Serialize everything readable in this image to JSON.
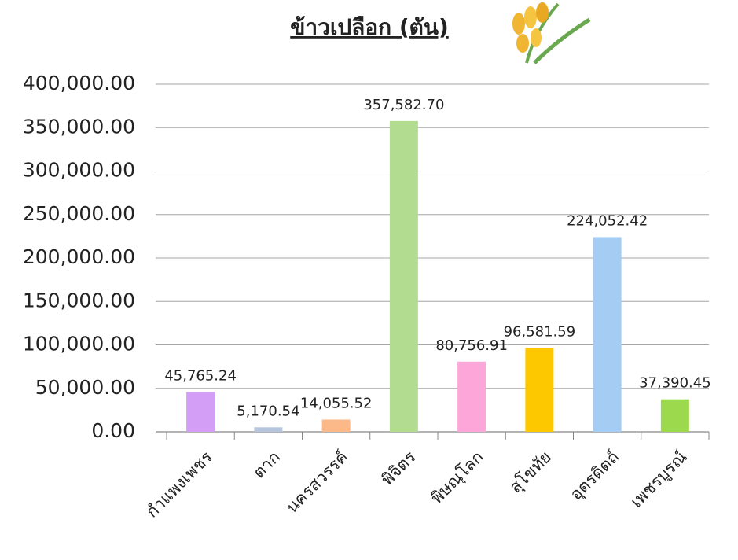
{
  "chart_data": {
    "type": "bar",
    "title": "ข้าวเปลือก (ตัน)",
    "categories": [
      "กำแพงเพชร",
      "ตาก",
      "นครสวรรค์",
      "พิจิตร",
      "พิษณุโลก",
      "สุโขทัย",
      "อุตรดิตถ์",
      "เพชรบูรณ์"
    ],
    "values": [
      45765.24,
      5170.54,
      14055.52,
      357582.7,
      80756.91,
      96581.59,
      224052.42,
      37390.45
    ],
    "value_labels": [
      "45,765.24",
      "5,170.54",
      "14,055.52",
      "357,582.70",
      "80,756.91",
      "96,581.59",
      "224,052.42",
      "37,390.45"
    ],
    "colors": [
      "#d39ef5",
      "#b5c5dd",
      "#fbb98a",
      "#b2dc8f",
      "#fda6d9",
      "#fdc800",
      "#a5ccf2",
      "#9dd94c"
    ],
    "ylim": [
      0,
      400000
    ],
    "yticks": [
      {
        "value": 0,
        "label": "0.00"
      },
      {
        "value": 50000,
        "label": "50,000.00"
      },
      {
        "value": 100000,
        "label": "100,000.00"
      },
      {
        "value": 150000,
        "label": "150,000.00"
      },
      {
        "value": 200000,
        "label": "200,000.00"
      },
      {
        "value": 250000,
        "label": "250,000.00"
      },
      {
        "value": 300000,
        "label": "300,000.00"
      },
      {
        "value": 350000,
        "label": "350,000.00"
      },
      {
        "value": 400000,
        "label": "400,000.00"
      }
    ],
    "grid": true
  }
}
